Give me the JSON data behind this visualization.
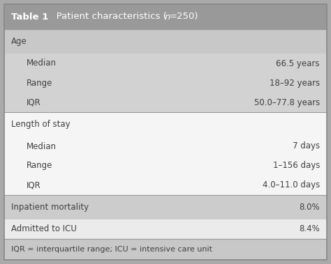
{
  "header_bg": "#999999",
  "title_bold": "Table 1",
  "title_rest": "   Patient characteristics ( ",
  "title_italic": "n",
  "title_end": "=250)",
  "rows": [
    {
      "label": "Age",
      "value": "",
      "indent": 0,
      "bg": "#c8c8c8",
      "bold": false,
      "section_top": true
    },
    {
      "label": "Median",
      "value": "66.5 years",
      "indent": 1,
      "bg": "#d2d2d2",
      "bold": false,
      "section_top": false
    },
    {
      "label": "Range",
      "value": "18–92 years",
      "indent": 1,
      "bg": "#d2d2d2",
      "bold": false,
      "section_top": false
    },
    {
      "label": "IQR",
      "value": "50.0–77.8 years",
      "indent": 1,
      "bg": "#d2d2d2",
      "bold": false,
      "section_top": false
    },
    {
      "label": "Length of stay",
      "value": "",
      "indent": 0,
      "bg": "#f5f5f5",
      "bold": false,
      "section_top": true
    },
    {
      "label": "Median",
      "value": "7 days",
      "indent": 1,
      "bg": "#f5f5f5",
      "bold": false,
      "section_top": false
    },
    {
      "label": "Range",
      "value": "1–156 days",
      "indent": 1,
      "bg": "#f5f5f5",
      "bold": false,
      "section_top": false
    },
    {
      "label": "IQR",
      "value": "4.0–11.0 days",
      "indent": 1,
      "bg": "#f5f5f5",
      "bold": false,
      "section_top": false
    },
    {
      "label": "Inpatient mortality",
      "value": "8.0%",
      "indent": 0,
      "bg": "#cccccc",
      "bold": false,
      "section_top": true
    },
    {
      "label": "Admitted to ICU",
      "value": "8.4%",
      "indent": 0,
      "bg": "#ebebeb",
      "bold": false,
      "section_top": false
    }
  ],
  "footer_text": "IQR = interquartile range; ICU = intensive care unit",
  "footer_bg": "#c8c8c8",
  "text_color": "#404040",
  "font_size": 8.5,
  "title_font_size": 9.5,
  "outer_bg": "#aaaaaa",
  "border_color": "#888888",
  "sep_color": "#999999"
}
